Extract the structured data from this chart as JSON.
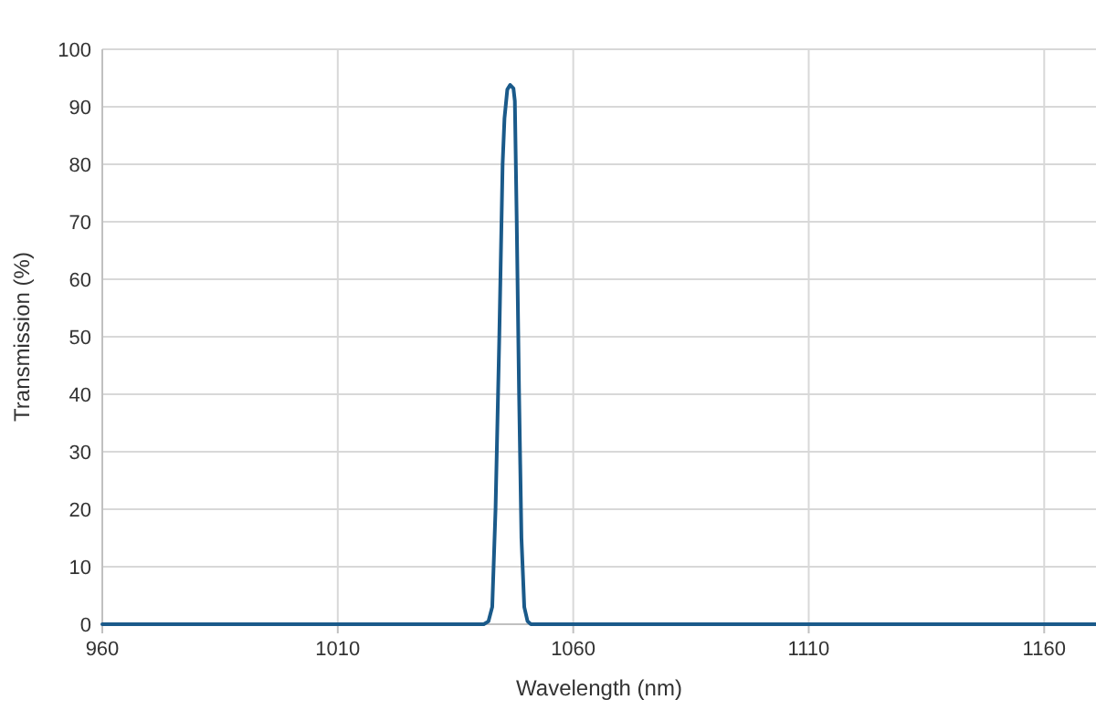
{
  "chart_data": {
    "type": "line",
    "xlabel": "Wavelength (nm)",
    "ylabel": "Transmission (%)",
    "x": [
      960,
      1041,
      1042,
      1042.8,
      1043.5,
      1044.3,
      1045,
      1045.4,
      1046,
      1046.6,
      1047.3,
      1047.6,
      1048,
      1048.5,
      1049,
      1049.6,
      1050.3,
      1051,
      1171
    ],
    "series": [
      {
        "color": "#1a5a8a",
        "values": [
          0,
          0,
          0.5,
          3,
          20,
          50,
          80,
          88,
          93,
          93.8,
          93.2,
          91,
          70,
          40,
          15,
          3,
          0.5,
          0,
          0
        ]
      }
    ],
    "xlim": [
      960,
      1171
    ],
    "xticks": [
      960,
      1010,
      1060,
      1110,
      1160
    ],
    "ylim": [
      0,
      100
    ],
    "yticks": [
      0,
      10,
      20,
      30,
      40,
      50,
      60,
      70,
      80,
      90,
      100
    ],
    "grid": true,
    "marker": "none",
    "line_style": "solid"
  }
}
